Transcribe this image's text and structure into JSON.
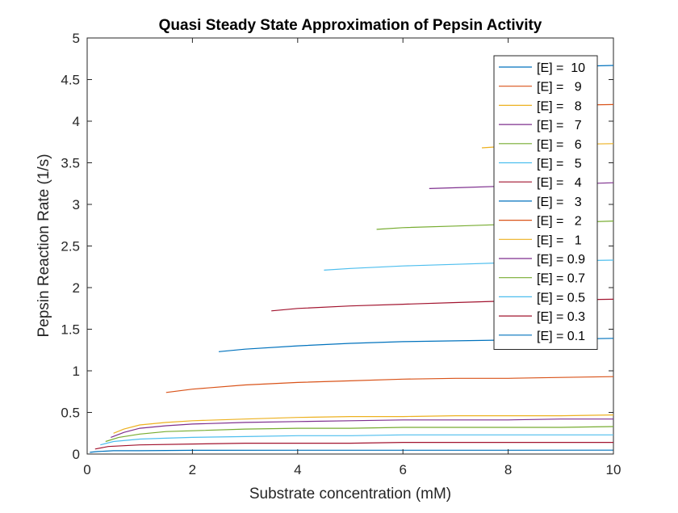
{
  "chart_data": {
    "type": "line",
    "title": "Quasi Steady State Approximation of Pepsin Activity",
    "xlabel": "Substrate concentration (mM)",
    "ylabel": "Pepsin Reaction Rate (1/s)",
    "xlim": [
      0,
      10
    ],
    "ylim": [
      0,
      5
    ],
    "xticks": [
      0,
      2,
      4,
      6,
      8,
      10
    ],
    "yticks": [
      0,
      0.5,
      1,
      1.5,
      2,
      2.5,
      3,
      3.5,
      4,
      4.5,
      5
    ],
    "grid": false,
    "legend_position": "top-right",
    "series": [
      {
        "name": "[E] =  10",
        "color": "#0072BD",
        "x": [
          8.0,
          10.0
        ],
        "y": [
          4.64,
          4.67
        ]
      },
      {
        "name": "[E] =   9",
        "color": "#D95319",
        "x": [
          8.0,
          10.0
        ],
        "y": [
          4.18,
          4.2
        ]
      },
      {
        "name": "[E] =   8",
        "color": "#EDB120",
        "x": [
          7.5,
          8.0,
          9.0,
          10.0
        ],
        "y": [
          3.68,
          3.7,
          3.72,
          3.73
        ]
      },
      {
        "name": "[E] =   7",
        "color": "#7E2F8E",
        "x": [
          6.5,
          7.0,
          8.0,
          9.0,
          10.0
        ],
        "y": [
          3.19,
          3.2,
          3.22,
          3.24,
          3.26
        ]
      },
      {
        "name": "[E] =   6",
        "color": "#77AC30",
        "x": [
          5.5,
          6.0,
          7.0,
          8.0,
          9.0,
          10.0
        ],
        "y": [
          2.7,
          2.72,
          2.74,
          2.76,
          2.78,
          2.8
        ]
      },
      {
        "name": "[E] =   5",
        "color": "#4DBEEE",
        "x": [
          4.5,
          5.0,
          6.0,
          7.0,
          8.0,
          9.0,
          10.0
        ],
        "y": [
          2.21,
          2.23,
          2.26,
          2.28,
          2.3,
          2.32,
          2.33
        ]
      },
      {
        "name": "[E] =   4",
        "color": "#A2142F",
        "x": [
          3.5,
          4.0,
          5.0,
          6.0,
          7.0,
          8.0,
          9.0,
          10.0
        ],
        "y": [
          1.72,
          1.75,
          1.78,
          1.8,
          1.82,
          1.84,
          1.85,
          1.86
        ]
      },
      {
        "name": "[E] =   3",
        "color": "#0072BD",
        "x": [
          2.5,
          3.0,
          4.0,
          5.0,
          6.0,
          7.0,
          8.0,
          9.0,
          10.0
        ],
        "y": [
          1.23,
          1.26,
          1.3,
          1.33,
          1.35,
          1.36,
          1.37,
          1.38,
          1.39
        ]
      },
      {
        "name": "[E] =   2",
        "color": "#D95319",
        "x": [
          1.5,
          2.0,
          3.0,
          4.0,
          5.0,
          6.0,
          7.0,
          8.0,
          9.0,
          10.0
        ],
        "y": [
          0.74,
          0.78,
          0.83,
          0.86,
          0.88,
          0.9,
          0.91,
          0.91,
          0.92,
          0.93
        ]
      },
      {
        "name": "[E] =   1",
        "color": "#EDB120",
        "x": [
          0.5,
          0.7,
          1.0,
          1.5,
          2.0,
          3.0,
          4.0,
          5.0,
          6.0,
          7.0,
          8.0,
          9.0,
          10.0
        ],
        "y": [
          0.25,
          0.3,
          0.35,
          0.38,
          0.4,
          0.42,
          0.44,
          0.45,
          0.45,
          0.46,
          0.46,
          0.46,
          0.47
        ]
      },
      {
        "name": "[E] = 0.9",
        "color": "#7E2F8E",
        "x": [
          0.45,
          0.7,
          1.0,
          1.5,
          2.0,
          3.0,
          4.0,
          5.0,
          6.0,
          7.0,
          8.0,
          9.0,
          10.0
        ],
        "y": [
          0.2,
          0.26,
          0.31,
          0.34,
          0.36,
          0.38,
          0.39,
          0.4,
          0.41,
          0.41,
          0.41,
          0.42,
          0.42
        ]
      },
      {
        "name": "[E] = 0.7",
        "color": "#77AC30",
        "x": [
          0.35,
          0.6,
          1.0,
          1.5,
          2.0,
          3.0,
          4.0,
          5.0,
          6.0,
          7.0,
          8.0,
          9.0,
          10.0
        ],
        "y": [
          0.15,
          0.2,
          0.24,
          0.27,
          0.28,
          0.3,
          0.31,
          0.31,
          0.32,
          0.32,
          0.32,
          0.32,
          0.33
        ]
      },
      {
        "name": "[E] = 0.5",
        "color": "#4DBEEE",
        "x": [
          0.25,
          0.5,
          1.0,
          1.5,
          2.0,
          3.0,
          4.0,
          5.0,
          6.0,
          7.0,
          8.0,
          9.0,
          10.0
        ],
        "y": [
          0.11,
          0.15,
          0.18,
          0.19,
          0.2,
          0.21,
          0.22,
          0.22,
          0.23,
          0.23,
          0.23,
          0.23,
          0.23
        ]
      },
      {
        "name": "[E] = 0.3",
        "color": "#A2142F",
        "x": [
          0.15,
          0.4,
          1.0,
          2.0,
          3.0,
          4.0,
          5.0,
          6.0,
          7.0,
          8.0,
          9.0,
          10.0
        ],
        "y": [
          0.06,
          0.09,
          0.11,
          0.12,
          0.13,
          0.13,
          0.13,
          0.14,
          0.14,
          0.14,
          0.14,
          0.14
        ]
      },
      {
        "name": "[E] = 0.1",
        "color": "#0072BD",
        "x": [
          0.05,
          0.2,
          0.5,
          1.0,
          2.0,
          4.0,
          6.0,
          8.0,
          10.0
        ],
        "y": [
          0.02,
          0.03,
          0.04,
          0.04,
          0.045,
          0.046,
          0.046,
          0.046,
          0.047
        ]
      }
    ]
  }
}
